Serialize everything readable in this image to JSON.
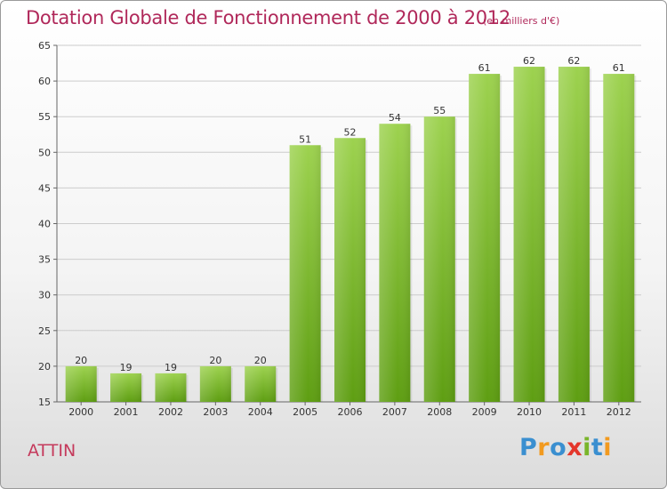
{
  "header": {
    "title": "Dotation Globale de Fonctionnement de 2000 à 2012",
    "unit_note": "(en milliers d'€)"
  },
  "footer": {
    "commune": "ATTIN",
    "brand": "Proxiti"
  },
  "colors": {
    "title": "#b0285a",
    "commune": "#c53a5c",
    "bar_top": "#9dd24f",
    "bar_bottom": "#5e9e12",
    "grid": "#cccccc",
    "brand_letters": [
      "#3a8fd0",
      "#f29a1f",
      "#3a8fd0",
      "#e4362b",
      "#7ab52a",
      "#3a8fd0",
      "#f29a1f"
    ]
  },
  "chart_data": {
    "type": "bar",
    "title": "Dotation Globale de Fonctionnement de 2000 à 2012",
    "subtitle": "(en milliers d'€)",
    "xlabel": "",
    "ylabel": "",
    "categories": [
      "2000",
      "2001",
      "2002",
      "2003",
      "2004",
      "2005",
      "2006",
      "2007",
      "2008",
      "2009",
      "2010",
      "2011",
      "2012"
    ],
    "values": [
      20,
      19,
      19,
      20,
      20,
      51,
      52,
      54,
      55,
      61,
      62,
      62,
      61
    ],
    "ylim": [
      15,
      65
    ],
    "yticks": [
      15,
      20,
      25,
      30,
      35,
      40,
      45,
      50,
      55,
      60,
      65
    ],
    "grid": true,
    "data_labels": true
  }
}
